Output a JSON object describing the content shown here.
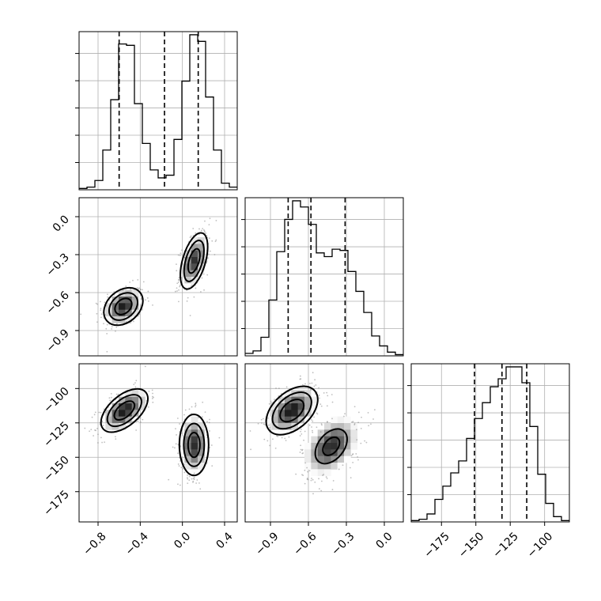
{
  "chart_data": {
    "type": "corner",
    "title": "",
    "parameters": [
      "",
      "",
      ""
    ],
    "axes": {
      "p0": {
        "range": [
          -0.98,
          0.52
        ],
        "ticks": [
          -0.8,
          -0.4,
          0.0,
          0.4
        ],
        "tick_labels": [
          "−0.8",
          "−0.4",
          "0.0",
          "0.4"
        ]
      },
      "p1": {
        "range": [
          -1.1,
          0.15
        ],
        "ticks": [
          -0.9,
          -0.6,
          -0.3,
          0.0
        ],
        "tick_labels": [
          "−0.9",
          "−0.6",
          "−0.3",
          "0.0"
        ]
      },
      "p2": {
        "range": [
          -197,
          -82
        ],
        "ticks": [
          -175,
          -150,
          -125,
          -100
        ],
        "tick_labels": [
          "−175",
          "−150",
          "−125",
          "−100"
        ]
      }
    },
    "grid": true,
    "histograms": [
      {
        "parameter": "p0",
        "bins": [
          -0.98,
          -0.905,
          -0.83,
          -0.755,
          -0.68,
          -0.605,
          -0.53,
          -0.455,
          -0.38,
          -0.305,
          -0.23,
          -0.155,
          -0.08,
          -0.005,
          0.07,
          0.145,
          0.22,
          0.295,
          0.37,
          0.445,
          0.52
        ],
        "counts": [
          1,
          2,
          7,
          30,
          68,
          110,
          109,
          65,
          35,
          15,
          9,
          11,
          38,
          82,
          117,
          112,
          70,
          30,
          5,
          2
        ],
        "quantiles": [
          -0.6,
          -0.17,
          0.15
        ]
      },
      {
        "parameter": "p1",
        "bins": [
          -1.1,
          -1.0375,
          -0.975,
          -0.9125,
          -0.85,
          -0.7875,
          -0.725,
          -0.6625,
          -0.6,
          -0.5375,
          -0.475,
          -0.4125,
          -0.35,
          -0.2875,
          -0.225,
          -0.1625,
          -0.1,
          -0.0375,
          0.025,
          0.0875,
          0.15
        ],
        "counts": [
          2,
          4,
          15,
          45,
          84,
          110,
          125,
          120,
          106,
          83,
          80,
          86,
          85,
          68,
          52,
          35,
          16,
          8,
          3,
          1
        ],
        "quantiles": [
          -0.76,
          -0.58,
          -0.31
        ]
      },
      {
        "parameter": "p2",
        "bins": [
          -197,
          -191.25,
          -185.5,
          -179.75,
          -174,
          -168.25,
          -162.5,
          -156.75,
          -151,
          -145.25,
          -139.5,
          -133.75,
          -128,
          -122.25,
          -116.5,
          -110.75,
          -105,
          -99.25,
          -93.5,
          -87.75,
          -82
        ],
        "counts": [
          1,
          2,
          6,
          17,
          27,
          37,
          46,
          63,
          78,
          90,
          102,
          108,
          117,
          117,
          105,
          72,
          36,
          14,
          4,
          1
        ],
        "quantiles": [
          -151,
          -131,
          -113
        ]
      }
    ],
    "joint": [
      {
        "x": "p0",
        "y": "p1",
        "modes": [
          {
            "center": [
              -0.56,
              -0.71
            ],
            "std": [
              0.1,
              0.08
            ],
            "rho": 0.3,
            "weight": 0.52,
            "contour_levels": [
              0.8,
              1.35,
              1.85
            ]
          },
          {
            "center": [
              0.11,
              -0.35
            ],
            "std": [
              0.07,
              0.12
            ],
            "rho": 0.5,
            "weight": 0.48,
            "contour_levels": [
              0.8,
              1.35,
              1.85
            ]
          }
        ]
      },
      {
        "x": "p0",
        "y": "p2",
        "modes": [
          {
            "center": [
              -0.55,
              -116
            ],
            "std": [
              0.12,
              8.5
            ],
            "rho": 0.55,
            "weight": 0.52,
            "contour_levels": [
              0.8,
              1.35,
              1.85
            ]
          },
          {
            "center": [
              0.11,
              -141
            ],
            "std": [
              0.075,
              12
            ],
            "rho": 0.0,
            "weight": 0.48,
            "contour_levels": [
              0.75,
              1.3,
              1.85
            ]
          }
        ]
      },
      {
        "x": "p1",
        "y": "p2",
        "modes": [
          {
            "center": [
              -0.73,
              -116
            ],
            "std": [
              0.11,
              9.5
            ],
            "rho": 0.45,
            "weight": 0.52,
            "contour_levels": [
              0.85,
              1.4,
              1.85
            ]
          },
          {
            "center": [
              -0.42,
              -142
            ],
            "std": [
              0.12,
              12
            ],
            "rho": 0.4,
            "weight": 0.48,
            "contour_levels": [
              0.55,
              1.05
            ]
          }
        ]
      }
    ]
  }
}
